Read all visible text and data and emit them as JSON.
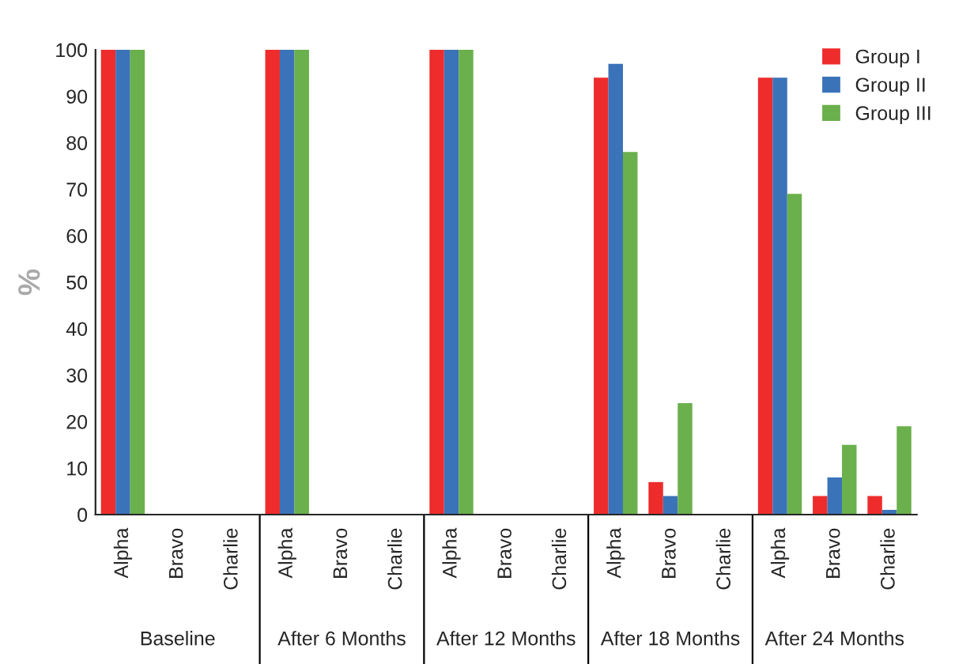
{
  "chart_data": {
    "type": "bar",
    "ylabel": "%",
    "categories": [
      "Alpha",
      "Bravo",
      "Charlie",
      "Alpha",
      "Bravo",
      "Charlie",
      "Alpha",
      "Bravo",
      "Charlie",
      "Alpha",
      "Bravo",
      "Charlie",
      "Alpha",
      "Bravo",
      "Charlie"
    ],
    "series": [
      {
        "name": "Group I",
        "color": "#ee2c2c",
        "values": [
          100,
          0,
          0,
          100,
          0,
          0,
          100,
          0,
          0,
          94,
          7,
          0,
          94,
          4,
          4
        ]
      },
      {
        "name": "Group II",
        "color": "#3b73b9",
        "values": [
          100,
          0,
          0,
          100,
          0,
          0,
          100,
          0,
          0,
          97,
          4,
          0,
          94,
          8,
          1
        ]
      },
      {
        "name": "Group III",
        "color": "#6ab04c",
        "values": [
          100,
          0,
          0,
          100,
          0,
          0,
          100,
          0,
          0,
          78,
          24,
          0,
          69,
          15,
          19
        ]
      }
    ],
    "annotations": [
      "Baseline",
      "After 6 Months",
      "After 12 Months",
      "After 18 Months",
      "After 24 Months"
    ],
    "ylim": [
      0,
      100
    ],
    "yticks": [
      0,
      10,
      20,
      30,
      40,
      50,
      60,
      70,
      80,
      90,
      100
    ],
    "grid": false,
    "legend": "top right"
  }
}
